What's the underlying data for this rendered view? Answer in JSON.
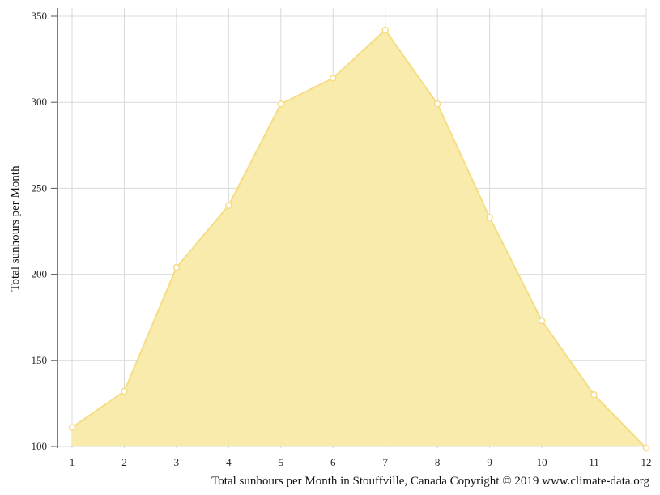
{
  "chart_data": {
    "type": "area",
    "x": [
      1,
      2,
      3,
      4,
      5,
      6,
      7,
      8,
      9,
      10,
      11,
      12
    ],
    "values": [
      111,
      132,
      204,
      240,
      299,
      314,
      342,
      299,
      233,
      173,
      130,
      99
    ],
    "ylabel": "Total sunhours per Month",
    "caption": "Total sunhours per Month in Stouffville, Canada Copyright © 2019 www.climate-data.org",
    "ylim": [
      100,
      350
    ],
    "yticks": [
      100,
      150,
      200,
      250,
      300,
      350
    ],
    "xticks": [
      1,
      2,
      3,
      4,
      5,
      6,
      7,
      8,
      9,
      10,
      11,
      12
    ],
    "grid": true,
    "colors": {
      "fill": "#f8eaa6",
      "line": "#f5dd84",
      "marker_fill": "#ffffff",
      "grid": "#d9d9d9",
      "axis": "#555555"
    }
  }
}
